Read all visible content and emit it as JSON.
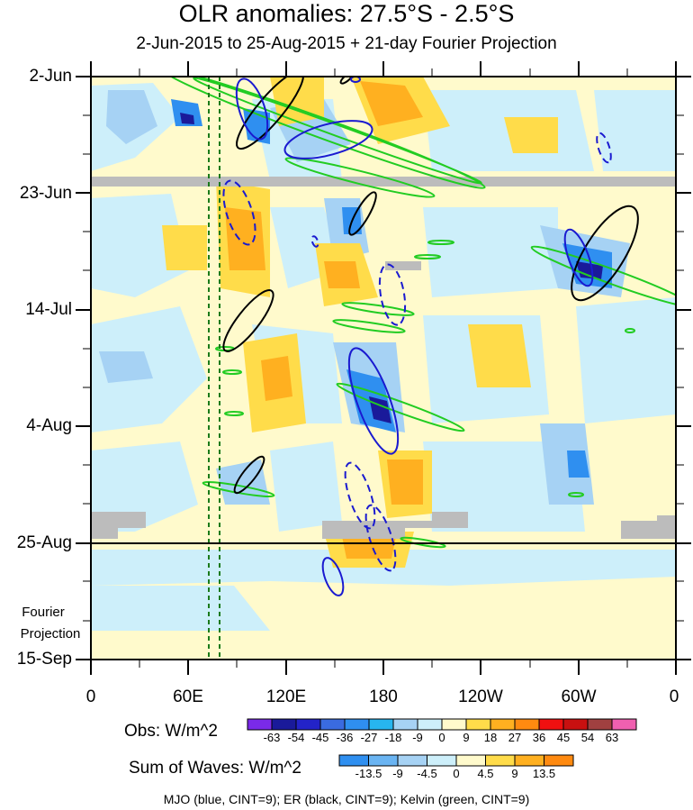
{
  "chart_data": {
    "type": "heatmap",
    "title": "OLR anomalies: 27.5°S - 2.5°S",
    "subtitle": "2-Jun-2015 to 25-Aug-2015 + 21-day Fourier Projection",
    "x_ticks": [
      "0",
      "60E",
      "120E",
      "180",
      "120W",
      "60W",
      "0"
    ],
    "y_ticks": [
      "2-Jun",
      "23-Jun",
      "14-Jul",
      "4-Aug",
      "25-Aug",
      "15-Sep"
    ],
    "fourier_label_1": "Fourier",
    "fourier_label_2": "Projection",
    "obs_colorbar": {
      "title": "Obs: W/m^2",
      "labels": [
        "-63",
        "-54",
        "-45",
        "-36",
        "-27",
        "-18",
        "-9",
        "0",
        "9",
        "18",
        "27",
        "36",
        "45",
        "54",
        "63"
      ],
      "colors": [
        "#7a2ae8",
        "#1a1a9a",
        "#2323c8",
        "#3a6be0",
        "#2f8ff0",
        "#27b5ef",
        "#a6d2f4",
        "#cdeffa",
        "#fffacc",
        "#ffdc4a",
        "#ffb020",
        "#ff8a10",
        "#f01010",
        "#c81010",
        "#a04040",
        "#f060b0"
      ]
    },
    "waves_colorbar": {
      "title": "Sum of Waves: W/m^2",
      "labels": [
        "-13.5",
        "-9",
        "-4.5",
        "0",
        "4.5",
        "9",
        "13.5"
      ],
      "colors": [
        "#2f8ff0",
        "#6ab4f2",
        "#a6d2f4",
        "#cdeffa",
        "#fffacc",
        "#ffdc4a",
        "#ffb020",
        "#ff8a10"
      ]
    },
    "legend": "MJO (blue, CINT=9); ER (black, CINT=9); Kelvin (green, CINT=9)",
    "x_range_deg_east": [
      0,
      360
    ],
    "time_range": [
      "2015-06-02",
      "2015-09-15"
    ],
    "observation_end": "2015-08-25",
    "missing_rows": [
      "2015-06-21"
    ],
    "reference_lines_deg_east": [
      72,
      78
    ]
  }
}
